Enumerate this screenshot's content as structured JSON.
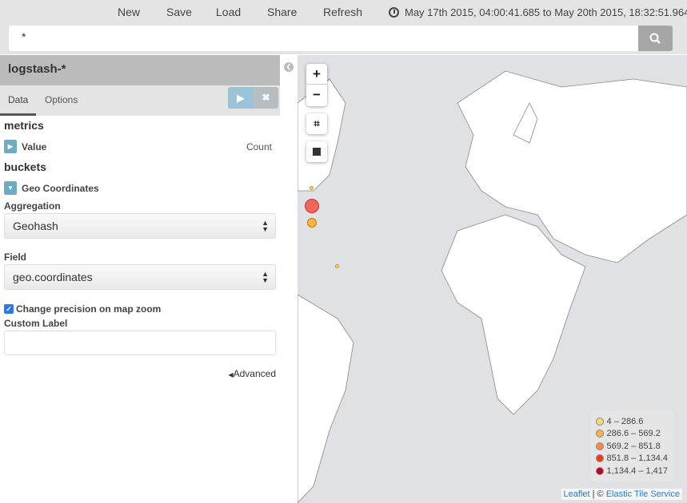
{
  "topbar": {
    "menu": [
      "New",
      "Save",
      "Load",
      "Share",
      "Refresh"
    ],
    "time_range": "May 17th 2015, 04:00:41.685 to May 20th 2015, 18:32:51.964"
  },
  "search": {
    "query": "*"
  },
  "sidebar": {
    "index_pattern": "logstash-*",
    "tabs": [
      "Data",
      "Options"
    ],
    "metrics_heading": "metrics",
    "metric": {
      "label": "Value",
      "value": "Count"
    },
    "buckets_heading": "buckets",
    "bucket": {
      "label": "Geo Coordinates"
    },
    "aggregation_label": "Aggregation",
    "aggregation_value": "Geohash",
    "field_label": "Field",
    "field_value": "geo.coordinates",
    "precision_checkbox": "Change precision on map zoom",
    "precision_checked": true,
    "custom_label": "Custom Label",
    "custom_label_value": "",
    "advanced": "Advanced"
  },
  "map": {
    "legend": [
      {
        "range": "4 – 286.6",
        "color": "#fed976"
      },
      {
        "range": "286.6 – 569.2",
        "color": "#feb24c"
      },
      {
        "range": "569.2 – 851.8",
        "color": "#fd8d3c"
      },
      {
        "range": "851.8 – 1,134.4",
        "color": "#f03b20"
      },
      {
        "range": "1,134.4 – 1,417",
        "color": "#bd0026"
      }
    ],
    "attribution": {
      "leaflet": "Leaflet",
      "separator": " | © ",
      "service": "Elastic Tile Service"
    },
    "zoom_in": "+",
    "zoom_out": "−"
  }
}
